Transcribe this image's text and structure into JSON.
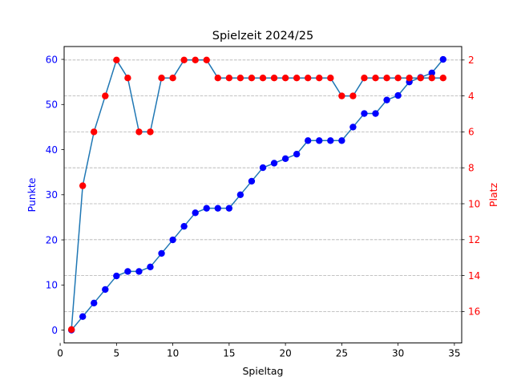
{
  "chart_data": {
    "type": "line",
    "title": "Spielzeit 2024/25",
    "xlabel": "Spieltag",
    "ylabel_left": "Punkte",
    "ylabel_right": "Platz",
    "xlim": [
      0.35,
      35.65
    ],
    "ylim_left": [
      -2.85,
      62.85
    ],
    "ylim_right": [
      17.75,
      1.25
    ],
    "right_axis_inverted": true,
    "grid": "horizontal dashed (right axis)",
    "x": [
      1,
      2,
      3,
      4,
      5,
      6,
      7,
      8,
      9,
      10,
      11,
      12,
      13,
      14,
      15,
      16,
      17,
      18,
      19,
      20,
      21,
      22,
      23,
      24,
      25,
      26,
      27,
      28,
      29,
      30,
      31,
      32,
      33,
      34
    ],
    "series": [
      {
        "axis": "left",
        "values": [
          0,
          3,
          6,
          9,
          12,
          13,
          13,
          14,
          17,
          20,
          23,
          26,
          27,
          27,
          27,
          30,
          33,
          36,
          37,
          38,
          39,
          42,
          42,
          42,
          42,
          45,
          48,
          48,
          51,
          52,
          55,
          56,
          57,
          60
        ]
      },
      {
        "axis": "right",
        "values": [
          17,
          9,
          6,
          4,
          2,
          3,
          6,
          6,
          3,
          3,
          2,
          2,
          2,
          3,
          3,
          3,
          3,
          3,
          3,
          3,
          3,
          3,
          3,
          3,
          4,
          4,
          3,
          3,
          3,
          3,
          3,
          3,
          3,
          3
        ]
      }
    ],
    "x_ticks": [
      "0",
      "5",
      "10",
      "15",
      "20",
      "25",
      "30",
      "35"
    ],
    "x_tick_values": [
      0,
      5,
      10,
      15,
      20,
      25,
      30,
      35
    ],
    "left_ticks": [
      "0",
      "10",
      "20",
      "30",
      "40",
      "50",
      "60"
    ],
    "left_tick_values": [
      0,
      10,
      20,
      30,
      40,
      50,
      60
    ],
    "right_ticks": [
      "2",
      "4",
      "6",
      "8",
      "10",
      "12",
      "14",
      "16"
    ],
    "right_tick_values": [
      2,
      4,
      6,
      8,
      10,
      12,
      14,
      16
    ]
  },
  "colors": {
    "line": "#1f77b4",
    "points_points": "#0000ff",
    "points_rank": "#ff0000",
    "left_axis": "#0000ff",
    "right_axis": "#ff0000",
    "grid": "#b0b0b0"
  }
}
